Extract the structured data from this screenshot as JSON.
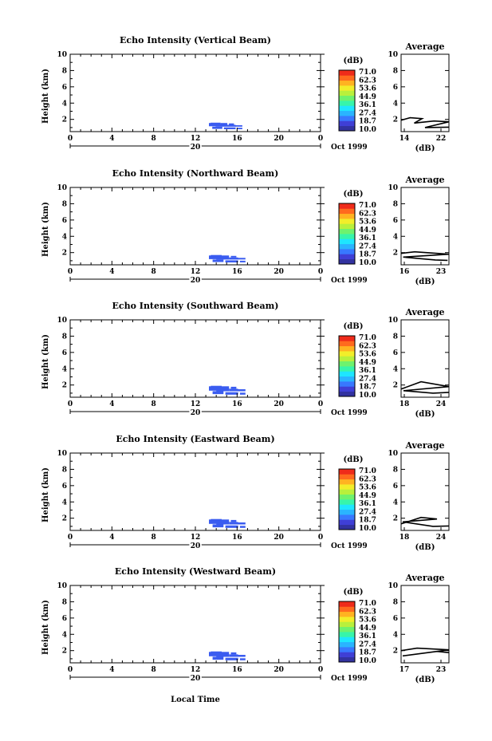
{
  "figure": {
    "xlabel": "Local Time",
    "date_label": "Oct 1999",
    "day_label": "20",
    "colorbar_unit": "(dB)",
    "colorbar_ticks": [
      "71.0",
      "62.3",
      "53.6",
      "44.9",
      "36.1",
      "27.4",
      "18.7",
      "10.0"
    ],
    "colorbar_colors": [
      "#3232a0",
      "#3f3fd6",
      "#3878ff",
      "#2ab4ff",
      "#1ee6ff",
      "#37f5aa",
      "#6ef26e",
      "#b9f03c",
      "#f2ee2a",
      "#ffb321",
      "#ff6a1e",
      "#ef2b1a"
    ],
    "avg_title": "Average",
    "avg_xlabel": "(dB)",
    "echo_color": "#3a5cf0"
  },
  "chart_data": [
    {
      "type": "heatmap",
      "title": "Echo Intensity (Vertical Beam)",
      "ylabel": "Height (km)",
      "xlim": [
        0,
        24
      ],
      "ylim": [
        0.5,
        10
      ],
      "xticks": [
        "0",
        "4",
        "8",
        "12",
        "16",
        "20",
        "0"
      ],
      "yticks": [
        "10",
        "8",
        "6",
        "4",
        "2"
      ],
      "echo_region": {
        "time": [
          13.3,
          16.5
        ],
        "height": [
          0.7,
          1.6
        ],
        "level_db": 10.0
      },
      "average_profile": {
        "type": "line",
        "title": "Average",
        "xlabel": "(dB)",
        "xlim": [
          14,
          22
        ],
        "xticks": [
          "14",
          "22"
        ],
        "yticks": [
          "10",
          "8",
          "6",
          "4",
          "2"
        ],
        "points": [
          [
            14.0,
            1.9
          ],
          [
            15.5,
            2.2
          ],
          [
            17.5,
            2.1
          ],
          [
            16.2,
            1.55
          ],
          [
            19.5,
            1.8
          ],
          [
            22.0,
            1.7
          ],
          [
            18.0,
            1.0
          ],
          [
            22.0,
            1.05
          ]
        ]
      }
    },
    {
      "type": "heatmap",
      "title": "Echo Intensity (Northward Beam)",
      "ylabel": "Height (km)",
      "xlim": [
        0,
        24
      ],
      "ylim": [
        0.5,
        10
      ],
      "xticks": [
        "0",
        "4",
        "8",
        "12",
        "16",
        "20",
        "0"
      ],
      "yticks": [
        "10",
        "8",
        "6",
        "4",
        "2"
      ],
      "echo_region": {
        "time": [
          13.3,
          16.8
        ],
        "height": [
          0.7,
          1.7
        ],
        "level_db": 10.0
      },
      "average_profile": {
        "type": "line",
        "title": "Average",
        "xlabel": "(dB)",
        "xlim": [
          16,
          23
        ],
        "xticks": [
          "16",
          "23"
        ],
        "yticks": [
          "10",
          "8",
          "6",
          "4",
          "2"
        ],
        "points": [
          [
            16.0,
            1.9
          ],
          [
            18.0,
            2.1
          ],
          [
            23.0,
            1.8
          ],
          [
            16.3,
            1.45
          ],
          [
            21.0,
            1.1
          ],
          [
            22.8,
            1.05
          ]
        ]
      }
    },
    {
      "type": "heatmap",
      "title": "Echo Intensity (Southward Beam)",
      "ylabel": "Height (km)",
      "xlim": [
        0,
        24
      ],
      "ylim": [
        0.5,
        10
      ],
      "xticks": [
        "0",
        "4",
        "8",
        "12",
        "16",
        "20",
        "0"
      ],
      "yticks": [
        "10",
        "8",
        "6",
        "4",
        "2"
      ],
      "echo_region": {
        "time": [
          13.3,
          16.8
        ],
        "height": [
          0.7,
          1.9
        ],
        "level_db": 10.0
      },
      "average_profile": {
        "type": "line",
        "title": "Average",
        "xlabel": "(dB)",
        "xlim": [
          18,
          24
        ],
        "xticks": [
          "18",
          "24"
        ],
        "yticks": [
          "10",
          "8",
          "6",
          "4",
          "2"
        ],
        "points": [
          [
            18.0,
            1.5
          ],
          [
            20.5,
            2.4
          ],
          [
            24.0,
            1.8
          ],
          [
            18.3,
            1.3
          ],
          [
            22.0,
            1.0
          ],
          [
            24.0,
            1.1
          ]
        ]
      }
    },
    {
      "type": "heatmap",
      "title": "Echo Intensity (Eastward Beam)",
      "ylabel": "Height (km)",
      "xlim": [
        0,
        24
      ],
      "ylim": [
        0.5,
        10
      ],
      "xticks": [
        "0",
        "4",
        "8",
        "12",
        "16",
        "20",
        "0"
      ],
      "yticks": [
        "10",
        "8",
        "6",
        "4",
        "2"
      ],
      "echo_region": {
        "time": [
          13.3,
          16.8
        ],
        "height": [
          0.7,
          1.9
        ],
        "level_db": 10.0
      },
      "average_profile": {
        "type": "line",
        "title": "Average",
        "xlabel": "(dB)",
        "xlim": [
          18,
          24
        ],
        "xticks": [
          "18",
          "24"
        ],
        "yticks": [
          "10",
          "8",
          "6",
          "4",
          "2"
        ],
        "points": [
          [
            18.0,
            1.3
          ],
          [
            20.5,
            2.1
          ],
          [
            22.5,
            1.9
          ],
          [
            18.2,
            1.55
          ],
          [
            22.0,
            1.0
          ],
          [
            24.0,
            1.05
          ]
        ]
      }
    },
    {
      "type": "heatmap",
      "title": "Echo Intensity (Westward Beam)",
      "ylabel": "Height (km)",
      "xlim": [
        0,
        24
      ],
      "ylim": [
        0.5,
        10
      ],
      "xticks": [
        "0",
        "4",
        "8",
        "12",
        "16",
        "20",
        "0"
      ],
      "yticks": [
        "10",
        "8",
        "6",
        "4",
        "2"
      ],
      "echo_region": {
        "time": [
          13.3,
          16.8
        ],
        "height": [
          0.7,
          1.9
        ],
        "level_db": 10.0
      },
      "average_profile": {
        "type": "line",
        "title": "Average",
        "xlabel": "(dB)",
        "xlim": [
          17,
          23
        ],
        "xticks": [
          "17",
          "23"
        ],
        "yticks": [
          "10",
          "8",
          "6",
          "4",
          "2"
        ],
        "points": [
          [
            17.0,
            2.0
          ],
          [
            19.0,
            2.3
          ],
          [
            23.0,
            2.1
          ],
          [
            17.2,
            1.35
          ],
          [
            21.5,
            1.9
          ],
          [
            23.0,
            1.75
          ]
        ]
      }
    }
  ]
}
